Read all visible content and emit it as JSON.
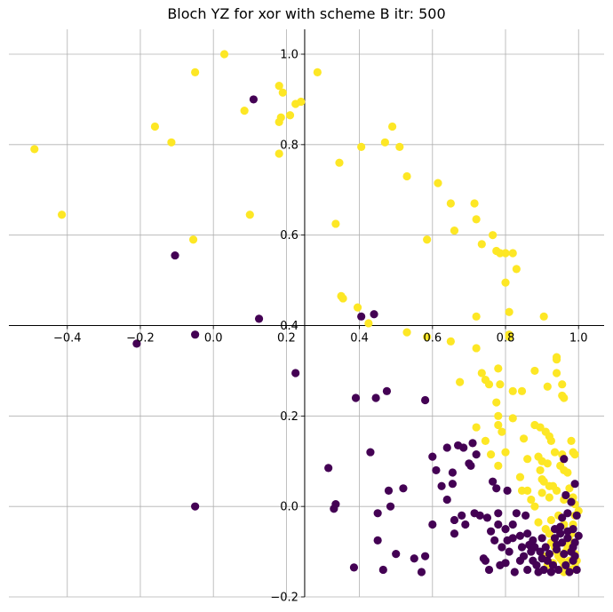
{
  "chart_data": {
    "type": "scatter",
    "title": "Bloch YZ for xor with scheme B itr: 500",
    "xlabel": "",
    "ylabel": "",
    "xlim": [
      -0.56,
      1.07
    ],
    "ylim": [
      -0.2,
      1.055
    ],
    "x_ticks": [
      -0.4,
      -0.2,
      0.0,
      0.2,
      0.4,
      0.6,
      0.8,
      1.0
    ],
    "y_ticks": [
      -0.2,
      0.0,
      0.2,
      0.4,
      0.6,
      0.8,
      1.0
    ],
    "x_tick_labels": [
      "−0.4",
      "−0.2",
      "0.0",
      "0.2",
      "0.4",
      "0.6",
      "0.8",
      "1.0"
    ],
    "y_tick_labels": [
      "−0.2",
      "0.0",
      "0.2",
      "0.4",
      "0.6",
      "0.8",
      "1.0"
    ],
    "grid": true,
    "spines": "centered",
    "series": [
      {
        "color": "#fde725",
        "points": [
          [
            -0.49,
            0.79
          ],
          [
            -0.415,
            0.645
          ],
          [
            -0.16,
            0.84
          ],
          [
            -0.115,
            0.805
          ],
          [
            -0.05,
            0.96
          ],
          [
            -0.055,
            0.59
          ],
          [
            0.03,
            1.0
          ],
          [
            0.085,
            0.875
          ],
          [
            0.1,
            0.645
          ],
          [
            0.18,
            0.93
          ],
          [
            0.19,
            0.915
          ],
          [
            0.18,
            0.85
          ],
          [
            0.185,
            0.86
          ],
          [
            0.18,
            0.78
          ],
          [
            0.21,
            0.865
          ],
          [
            0.225,
            0.89
          ],
          [
            0.24,
            0.895
          ],
          [
            0.285,
            0.96
          ],
          [
            0.335,
            0.625
          ],
          [
            0.345,
            0.76
          ],
          [
            0.35,
            0.465
          ],
          [
            0.355,
            0.46
          ],
          [
            0.395,
            0.44
          ],
          [
            0.405,
            0.795
          ],
          [
            0.47,
            0.805
          ],
          [
            0.49,
            0.84
          ],
          [
            0.51,
            0.795
          ],
          [
            0.53,
            0.73
          ],
          [
            0.425,
            0.405
          ],
          [
            0.53,
            0.385
          ],
          [
            0.585,
            0.59
          ],
          [
            0.615,
            0.715
          ],
          [
            0.65,
            0.67
          ],
          [
            0.66,
            0.61
          ],
          [
            0.715,
            0.67
          ],
          [
            0.72,
            0.635
          ],
          [
            0.735,
            0.58
          ],
          [
            0.765,
            0.6
          ],
          [
            0.775,
            0.565
          ],
          [
            0.785,
            0.56
          ],
          [
            0.8,
            0.56
          ],
          [
            0.8,
            0.495
          ],
          [
            0.82,
            0.56
          ],
          [
            0.83,
            0.525
          ],
          [
            0.81,
            0.43
          ],
          [
            0.72,
            0.42
          ],
          [
            0.81,
            0.38
          ],
          [
            0.81,
            0.375
          ],
          [
            0.905,
            0.42
          ],
          [
            0.585,
            0.375
          ],
          [
            0.65,
            0.365
          ],
          [
            0.72,
            0.35
          ],
          [
            0.675,
            0.275
          ],
          [
            0.735,
            0.295
          ],
          [
            0.745,
            0.28
          ],
          [
            0.755,
            0.27
          ],
          [
            0.78,
            0.305
          ],
          [
            0.785,
            0.27
          ],
          [
            0.775,
            0.23
          ],
          [
            0.82,
            0.255
          ],
          [
            0.845,
            0.255
          ],
          [
            0.88,
            0.3
          ],
          [
            0.915,
            0.265
          ],
          [
            0.94,
            0.33
          ],
          [
            0.94,
            0.325
          ],
          [
            0.94,
            0.295
          ],
          [
            0.955,
            0.27
          ],
          [
            0.96,
            0.24
          ],
          [
            0.955,
            0.245
          ],
          [
            0.72,
            0.175
          ],
          [
            0.745,
            0.145
          ],
          [
            0.76,
            0.115
          ],
          [
            0.78,
            0.2
          ],
          [
            0.78,
            0.18
          ],
          [
            0.79,
            0.165
          ],
          [
            0.8,
            0.12
          ],
          [
            0.82,
            0.195
          ],
          [
            0.78,
            0.09
          ],
          [
            0.85,
            0.15
          ],
          [
            0.88,
            0.18
          ],
          [
            0.895,
            0.175
          ],
          [
            0.91,
            0.165
          ],
          [
            0.92,
            0.155
          ],
          [
            0.925,
            0.145
          ],
          [
            0.935,
            0.12
          ],
          [
            0.955,
            0.115
          ],
          [
            0.96,
            0.105
          ],
          [
            0.98,
            0.145
          ],
          [
            0.985,
            0.12
          ],
          [
            0.99,
            0.115
          ],
          [
            0.86,
            0.105
          ],
          [
            0.89,
            0.11
          ],
          [
            0.9,
            0.1
          ],
          [
            0.915,
            0.095
          ],
          [
            0.895,
            0.08
          ],
          [
            0.9,
            0.06
          ],
          [
            0.905,
            0.055
          ],
          [
            0.92,
            0.045
          ],
          [
            0.93,
            0.045
          ],
          [
            0.95,
            0.09
          ],
          [
            0.96,
            0.08
          ],
          [
            0.97,
            0.075
          ],
          [
            0.84,
            0.065
          ],
          [
            0.845,
            0.035
          ],
          [
            0.86,
            0.035
          ],
          [
            0.87,
            0.015
          ],
          [
            0.88,
            0.0
          ],
          [
            0.9,
            0.03
          ],
          [
            0.92,
            0.02
          ],
          [
            0.94,
            0.035
          ],
          [
            0.96,
            0.015
          ],
          [
            0.975,
            0.04
          ],
          [
            0.985,
            0.02
          ],
          [
            0.99,
            0.005
          ],
          [
            0.89,
            -0.035
          ],
          [
            0.91,
            -0.05
          ],
          [
            0.92,
            -0.06
          ],
          [
            0.925,
            -0.08
          ],
          [
            0.935,
            -0.09
          ],
          [
            0.94,
            -0.1
          ],
          [
            0.945,
            -0.11
          ],
          [
            0.95,
            -0.115
          ],
          [
            0.955,
            -0.12
          ],
          [
            0.96,
            -0.13
          ],
          [
            0.965,
            -0.1
          ],
          [
            0.97,
            -0.09
          ],
          [
            0.975,
            -0.075
          ],
          [
            0.98,
            -0.06
          ],
          [
            0.985,
            -0.04
          ],
          [
            0.99,
            -0.02
          ],
          [
            1.0,
            -0.01
          ],
          [
            0.975,
            -0.12
          ],
          [
            0.99,
            -0.105
          ],
          [
            0.99,
            -0.135
          ],
          [
            0.98,
            -0.14
          ],
          [
            0.96,
            -0.145
          ],
          [
            0.93,
            -0.125
          ],
          [
            0.915,
            -0.13
          ],
          [
            0.905,
            -0.11
          ],
          [
            0.945,
            -0.02
          ],
          [
            0.925,
            -0.03
          ],
          [
            0.96,
            -0.04
          ],
          [
            0.98,
            -0.08
          ],
          [
            0.995,
            -0.12
          ]
        ]
      },
      {
        "color": "#440154",
        "points": [
          [
            0.11,
            0.9
          ],
          [
            -0.105,
            0.555
          ],
          [
            0.125,
            0.415
          ],
          [
            -0.21,
            0.36
          ],
          [
            -0.05,
            0.38
          ],
          [
            0.405,
            0.42
          ],
          [
            0.44,
            0.425
          ],
          [
            0.225,
            0.295
          ],
          [
            0.39,
            0.24
          ],
          [
            0.445,
            0.24
          ],
          [
            0.475,
            0.255
          ],
          [
            0.58,
            0.235
          ],
          [
            0.43,
            0.12
          ],
          [
            0.315,
            0.085
          ],
          [
            0.33,
            -0.005
          ],
          [
            0.335,
            0.005
          ],
          [
            -0.05,
            0.0
          ],
          [
            0.385,
            -0.135
          ],
          [
            0.45,
            -0.015
          ],
          [
            0.45,
            -0.075
          ],
          [
            0.465,
            -0.14
          ],
          [
            0.48,
            0.035
          ],
          [
            0.485,
            0.0
          ],
          [
            0.5,
            -0.105
          ],
          [
            0.52,
            0.04
          ],
          [
            0.55,
            -0.115
          ],
          [
            0.57,
            -0.145
          ],
          [
            0.58,
            -0.11
          ],
          [
            0.6,
            -0.04
          ],
          [
            0.6,
            0.11
          ],
          [
            0.61,
            0.08
          ],
          [
            0.625,
            0.045
          ],
          [
            0.64,
            0.015
          ],
          [
            0.64,
            0.13
          ],
          [
            0.655,
            0.075
          ],
          [
            0.655,
            0.05
          ],
          [
            0.66,
            -0.03
          ],
          [
            0.66,
            -0.06
          ],
          [
            0.67,
            0.135
          ],
          [
            0.68,
            -0.02
          ],
          [
            0.685,
            0.13
          ],
          [
            0.69,
            -0.04
          ],
          [
            0.7,
            0.095
          ],
          [
            0.705,
            0.09
          ],
          [
            0.71,
            0.14
          ],
          [
            0.715,
            -0.015
          ],
          [
            0.72,
            0.115
          ],
          [
            0.73,
            -0.02
          ],
          [
            0.74,
            -0.115
          ],
          [
            0.745,
            -0.12
          ],
          [
            0.75,
            -0.025
          ],
          [
            0.755,
            -0.14
          ],
          [
            0.76,
            -0.055
          ],
          [
            0.765,
            0.055
          ],
          [
            0.77,
            -0.075
          ],
          [
            0.775,
            0.04
          ],
          [
            0.78,
            -0.015
          ],
          [
            0.785,
            -0.13
          ],
          [
            0.79,
            -0.09
          ],
          [
            0.8,
            -0.125
          ],
          [
            0.805,
            0.035
          ],
          [
            0.805,
            -0.075
          ],
          [
            0.81,
            -0.1
          ],
          [
            0.82,
            -0.07
          ],
          [
            0.825,
            -0.145
          ],
          [
            0.83,
            -0.015
          ],
          [
            0.84,
            -0.12
          ],
          [
            0.845,
            -0.09
          ],
          [
            0.85,
            -0.11
          ],
          [
            0.855,
            -0.02
          ],
          [
            0.86,
            -0.14
          ],
          [
            0.865,
            -0.085
          ],
          [
            0.87,
            -0.1
          ],
          [
            0.875,
            -0.12
          ],
          [
            0.88,
            -0.09
          ],
          [
            0.885,
            -0.13
          ],
          [
            0.89,
            -0.145
          ],
          [
            0.895,
            -0.1
          ],
          [
            0.9,
            -0.115
          ],
          [
            0.905,
            -0.14
          ],
          [
            0.91,
            -0.09
          ],
          [
            0.915,
            -0.12
          ],
          [
            0.92,
            -0.105
          ],
          [
            0.925,
            -0.145
          ],
          [
            0.93,
            -0.13
          ],
          [
            0.935,
            -0.07
          ],
          [
            0.94,
            -0.095
          ],
          [
            0.945,
            -0.14
          ],
          [
            0.95,
            -0.06
          ],
          [
            0.955,
            -0.08
          ],
          [
            0.96,
            0.105
          ],
          [
            0.96,
            -0.105
          ],
          [
            0.965,
            0.025
          ],
          [
            0.965,
            -0.13
          ],
          [
            0.97,
            -0.07
          ],
          [
            0.975,
            -0.145
          ],
          [
            0.98,
            0.01
          ],
          [
            0.98,
            -0.1
          ],
          [
            0.985,
            -0.05
          ],
          [
            0.985,
            -0.12
          ],
          [
            0.99,
            0.05
          ],
          [
            0.99,
            -0.08
          ],
          [
            0.995,
            -0.02
          ],
          [
            0.995,
            -0.14
          ],
          [
            1.0,
            -0.065
          ],
          [
            0.97,
            -0.055
          ],
          [
            0.95,
            -0.045
          ],
          [
            0.935,
            -0.05
          ],
          [
            0.9,
            -0.07
          ],
          [
            0.875,
            -0.075
          ],
          [
            0.86,
            -0.06
          ],
          [
            0.84,
            -0.065
          ],
          [
            0.82,
            -0.04
          ],
          [
            0.8,
            -0.05
          ],
          [
            0.78,
            -0.04
          ],
          [
            0.955,
            -0.025
          ],
          [
            0.97,
            -0.015
          ],
          [
            0.94,
            -0.085
          ],
          [
            0.985,
            -0.09
          ],
          [
            0.99,
            -0.11
          ]
        ]
      }
    ]
  }
}
